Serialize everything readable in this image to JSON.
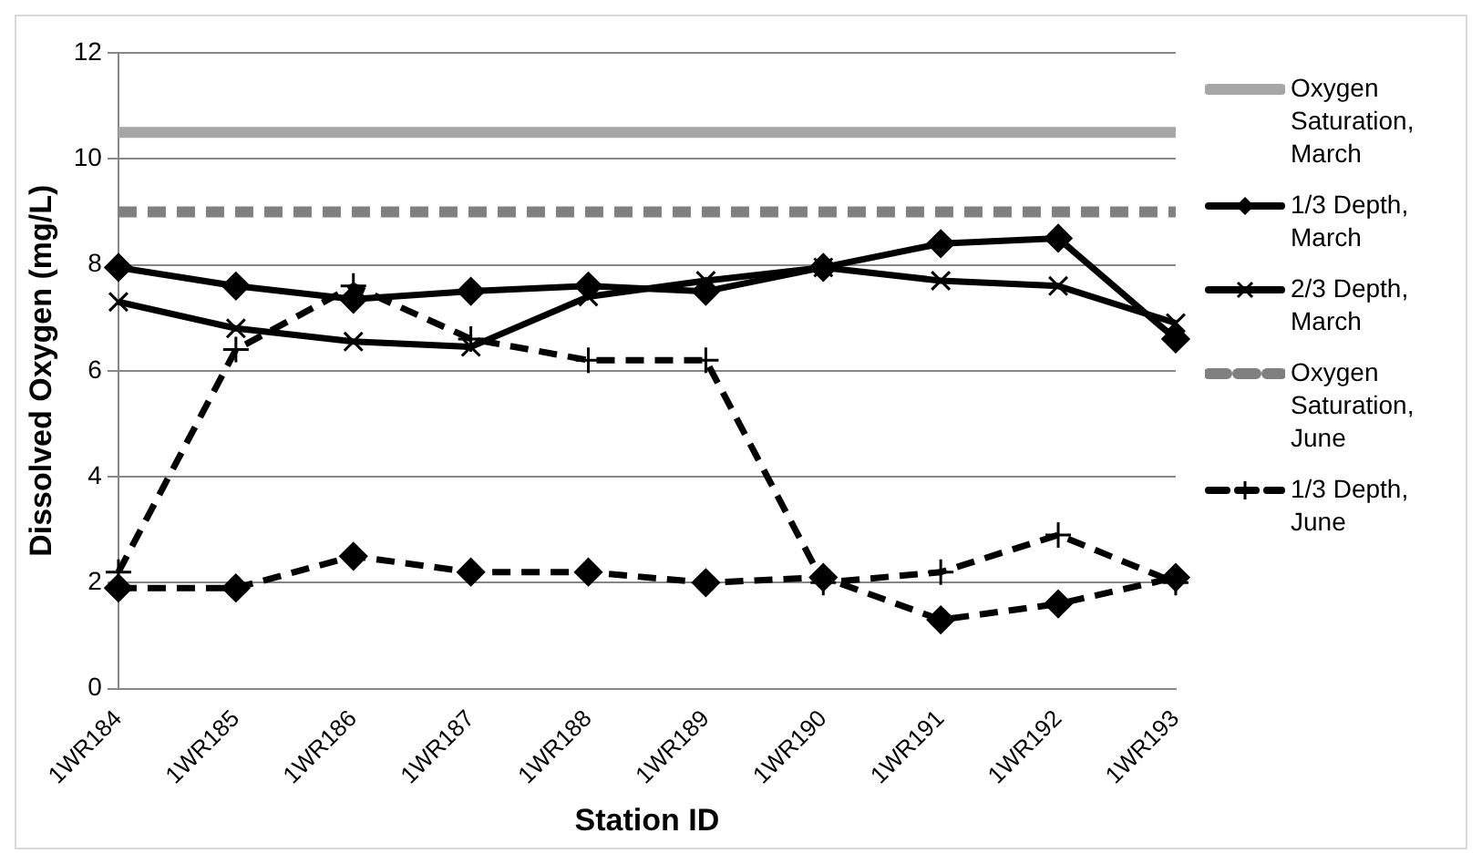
{
  "chart_data": {
    "type": "line",
    "xlabel": "Station ID",
    "ylabel": "Dissolved Oxygen (mg/L)",
    "categories": [
      "1WR184",
      "1WR185",
      "1WR186",
      "1WR187",
      "1WR188",
      "1WR189",
      "1WR190",
      "1WR191",
      "1WR192",
      "1WR193"
    ],
    "ylim": [
      0,
      12
    ],
    "yticks": [
      0,
      2,
      4,
      6,
      8,
      10,
      12
    ],
    "grid": "y",
    "legend": "right",
    "series": [
      {
        "name": "Oxygen Saturation, March",
        "color": "#a6a6a6",
        "line_style": "solid",
        "marker": "none",
        "values": [
          10.5,
          10.5,
          10.5,
          10.5,
          10.5,
          10.5,
          10.5,
          10.5,
          10.5,
          10.5
        ]
      },
      {
        "name": "1/3 Depth, March",
        "color": "#000000",
        "line_style": "solid",
        "marker": "diamond",
        "values": [
          7.95,
          7.6,
          7.35,
          7.5,
          7.6,
          7.5,
          7.95,
          8.4,
          8.5,
          6.6
        ]
      },
      {
        "name": "2/3 Depth, March",
        "color": "#000000",
        "line_style": "solid",
        "marker": "cross",
        "values": [
          7.3,
          6.8,
          6.55,
          6.45,
          7.4,
          7.7,
          7.95,
          7.7,
          7.6,
          6.9
        ]
      },
      {
        "name": "Oxygen Saturation, June",
        "color": "#808080",
        "line_style": "dashed",
        "marker": "none",
        "values": [
          9,
          9,
          9,
          9,
          9,
          9,
          9,
          9,
          9,
          9
        ]
      },
      {
        "name": "1/3 Depth, June",
        "color": "#000000",
        "line_style": "dashed",
        "marker": "plus",
        "values": [
          2.2,
          6.4,
          7.6,
          6.6,
          6.2,
          6.2,
          2.0,
          2.2,
          2.9,
          2.0
        ]
      },
      {
        "color": "#000000",
        "line_style": "dashed",
        "marker": "diamond",
        "values": [
          1.9,
          1.9,
          2.5,
          2.2,
          2.2,
          2.0,
          2.1,
          1.3,
          1.6,
          2.1
        ]
      }
    ]
  }
}
